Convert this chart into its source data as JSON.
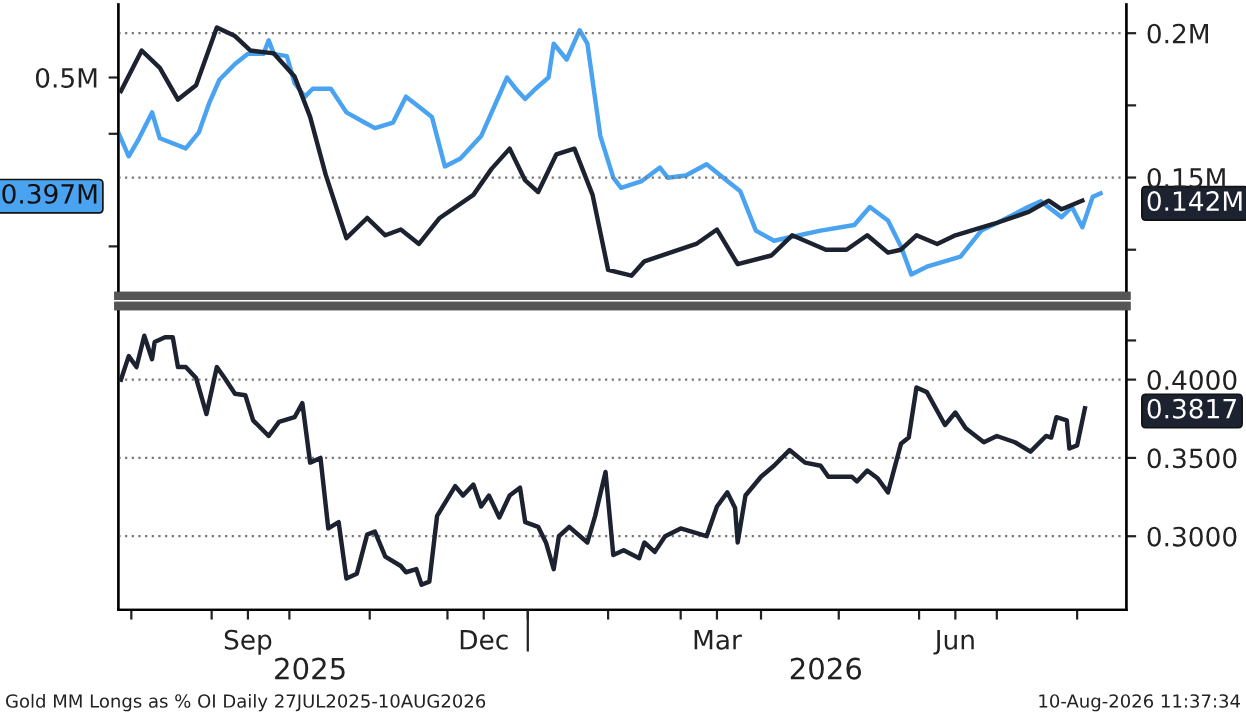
{
  "chart_data": [
    {
      "type": "line",
      "xlim": [
        "2025-07-27",
        "2026-08-20"
      ],
      "ylim": [
        0.306,
        0.565
      ],
      "y2lim": [
        0.109,
        0.21
      ],
      "yticks": [
        {
          "value": 0.35,
          "label": null
        },
        {
          "value": 0.397,
          "label": "0.397M"
        },
        {
          "value": 0.45,
          "label": null
        },
        {
          "value": 0.5,
          "label": "0.5M"
        }
      ],
      "y2ticks": [
        {
          "value": 0.125,
          "label": null
        },
        {
          "value": 0.142,
          "label": "0.142M"
        },
        {
          "value": 0.15,
          "label": "0.15M"
        },
        {
          "value": 0.175,
          "label": null
        },
        {
          "value": 0.2,
          "label": "0.2M"
        }
      ],
      "grid": "y2",
      "tick_labels": "y",
      "series": [
        {
          "color": "#4aa3f0",
          "axis": "y",
          "x": [
            "2025-07-27",
            "2025-07-31",
            "2025-08-04",
            "2025-08-09",
            "2025-08-12",
            "2025-08-22",
            "2025-08-27",
            "2025-08-31",
            "2025-09-04",
            "2025-09-10",
            "2025-09-15",
            "2025-09-21",
            "2025-09-23",
            "2025-09-25",
            "2025-09-30",
            "2025-10-03",
            "2025-10-07",
            "2025-10-10",
            "2025-10-17",
            "2025-10-23",
            "2025-10-30",
            "2025-11-03",
            "2025-11-10",
            "2025-11-15",
            "2025-11-20",
            "2025-11-25",
            "2025-11-30",
            "2025-12-06",
            "2025-12-14",
            "2025-12-24",
            "2025-12-27",
            "2025-12-31",
            "2026-01-04",
            "2026-01-09",
            "2026-01-11",
            "2026-01-16",
            "2026-01-21",
            "2026-01-24",
            "2026-01-29",
            "2026-02-03",
            "2026-02-06",
            "2026-02-14",
            "2026-02-21",
            "2026-02-24",
            "2026-03-03",
            "2026-03-11",
            "2026-03-19",
            "2026-03-24",
            "2026-03-30",
            "2026-04-06",
            "2026-04-14",
            "2026-04-24",
            "2026-05-07",
            "2026-05-13",
            "2026-05-20",
            "2026-05-25",
            "2026-05-29",
            "2026-06-04",
            "2026-06-17",
            "2026-06-25",
            "2026-07-03",
            "2026-07-13",
            "2026-07-18",
            "2026-07-26",
            "2026-07-30",
            "2026-08-03",
            "2026-08-07",
            "2026-08-10"
          ],
          "values": [
            0.451,
            0.43,
            0.446,
            0.469,
            0.446,
            0.437,
            0.451,
            0.477,
            0.498,
            0.512,
            0.521,
            0.521,
            0.533,
            0.521,
            0.519,
            0.495,
            0.483,
            0.49,
            0.49,
            0.469,
            0.46,
            0.455,
            0.46,
            0.483,
            0.474,
            0.465,
            0.421,
            0.428,
            0.448,
            0.5,
            0.491,
            0.481,
            0.49,
            0.5,
            0.53,
            0.516,
            0.542,
            0.53,
            0.448,
            0.411,
            0.402,
            0.408,
            0.42,
            0.411,
            0.413,
            0.423,
            0.408,
            0.399,
            0.364,
            0.355,
            0.359,
            0.364,
            0.369,
            0.385,
            0.373,
            0.35,
            0.325,
            0.332,
            0.341,
            0.364,
            0.373,
            0.385,
            0.39,
            0.376,
            0.385,
            0.367,
            0.394,
            0.397
          ]
        },
        {
          "color": "#1c2230",
          "axis": "y2",
          "x": [
            "2025-07-28",
            "2025-08-05",
            "2025-08-12",
            "2025-08-19",
            "2025-08-26",
            "2025-09-03",
            "2025-09-10",
            "2025-09-16",
            "2025-09-25",
            "2025-10-03",
            "2025-10-09",
            "2025-10-15",
            "2025-10-23",
            "2025-10-31",
            "2025-11-07",
            "2025-11-13",
            "2025-11-20",
            "2025-11-28",
            "2025-12-11",
            "2025-12-18",
            "2025-12-25",
            "2025-12-31",
            "2026-01-05",
            "2026-01-12",
            "2026-01-19",
            "2026-01-26",
            "2026-02-01",
            "2026-02-10",
            "2026-02-15",
            "2026-03-07",
            "2026-03-15",
            "2026-03-23",
            "2026-04-05",
            "2026-04-13",
            "2026-04-26",
            "2026-05-04",
            "2026-05-12",
            "2026-05-20",
            "2026-05-25",
            "2026-05-31",
            "2026-06-08",
            "2026-06-15",
            "2026-06-30",
            "2026-07-13",
            "2026-07-21",
            "2026-07-26",
            "2026-08-03"
          ],
          "values": [
            0.18,
            0.194,
            0.188,
            0.177,
            0.182,
            0.202,
            0.199,
            0.194,
            0.193,
            0.185,
            0.171,
            0.151,
            0.129,
            0.136,
            0.13,
            0.132,
            0.127,
            0.136,
            0.144,
            0.153,
            0.16,
            0.149,
            0.145,
            0.158,
            0.16,
            0.144,
            0.118,
            0.116,
            0.121,
            0.127,
            0.132,
            0.12,
            0.123,
            0.13,
            0.125,
            0.125,
            0.13,
            0.124,
            0.125,
            0.13,
            0.127,
            0.13,
            0.134,
            0.138,
            0.142,
            0.139,
            0.142
          ]
        }
      ],
      "line_style": "solid"
    },
    {
      "type": "line",
      "xlim": [
        "2025-07-27",
        "2026-08-20"
      ],
      "y2lim": [
        0.253,
        0.447
      ],
      "y2ticks": [
        {
          "value": 0.3,
          "label": "0.3000"
        },
        {
          "value": 0.35,
          "label": "0.3500"
        },
        {
          "value": 0.3817,
          "label": "0.3817"
        },
        {
          "value": 0.4,
          "label": "0.4000"
        },
        {
          "value": 0.425,
          "label": null
        }
      ],
      "xticks": [
        {
          "value": "2025-08-01",
          "label": null
        },
        {
          "value": "2025-09-01",
          "label": null
        },
        {
          "value": "2025-09-15",
          "label": "Sep"
        },
        {
          "value": "2025-10-01",
          "label": null
        },
        {
          "value": "2025-11-01",
          "label": null
        },
        {
          "value": "2025-12-01",
          "label": null
        },
        {
          "value": "2025-12-15",
          "label": "Dec"
        },
        {
          "value": "2026-01-01",
          "label": null
        },
        {
          "value": "2026-02-01",
          "label": null
        },
        {
          "value": "2026-03-01",
          "label": null
        },
        {
          "value": "2026-03-15",
          "label": "Mar"
        },
        {
          "value": "2026-04-01",
          "label": null
        },
        {
          "value": "2026-05-01",
          "label": null
        },
        {
          "value": "2026-06-01",
          "label": null
        },
        {
          "value": "2026-06-15",
          "label": "Jun"
        },
        {
          "value": "2026-07-01",
          "label": null
        },
        {
          "value": "2026-08-01",
          "label": null
        }
      ],
      "x2lim": [
        "2025-07-27",
        "2026-08-20"
      ],
      "x2ticks": [
        {
          "value": "2025-10-09",
          "label": "2025"
        },
        {
          "value": "2026-01-01",
          "label": null
        },
        {
          "value": "2026-04-26",
          "label": "2026"
        }
      ],
      "grid": "y2",
      "series": [
        {
          "color": "#1c2230",
          "axis": "y2",
          "x": [
            "2025-07-28",
            "2025-07-31",
            "2025-08-03",
            "2025-08-06",
            "2025-08-09",
            "2025-08-10",
            "2025-08-14",
            "2025-08-17",
            "2025-08-19",
            "2025-08-22",
            "2025-08-26",
            "2025-08-30",
            "2025-09-03",
            "2025-09-06",
            "2025-09-10",
            "2025-09-14",
            "2025-09-17",
            "2025-09-23",
            "2025-09-27",
            "2025-10-03",
            "2025-10-06",
            "2025-10-09",
            "2025-10-13",
            "2025-10-16",
            "2025-10-20",
            "2025-10-23",
            "2025-10-27",
            "2025-10-31",
            "2025-11-03",
            "2025-11-07",
            "2025-11-13",
            "2025-11-15",
            "2025-11-19",
            "2025-11-21",
            "2025-11-24",
            "2025-11-27",
            "2025-12-04",
            "2025-12-07",
            "2025-12-11",
            "2025-12-14",
            "2025-12-17",
            "2025-12-21",
            "2025-12-25",
            "2025-12-29",
            "2025-12-31",
            "2026-01-05",
            "2026-01-08",
            "2026-01-11",
            "2026-01-13",
            "2026-01-17",
            "2026-01-24",
            "2026-01-27",
            "2026-01-31",
            "2026-02-03",
            "2026-02-07",
            "2026-02-13",
            "2026-02-15",
            "2026-02-19",
            "2026-02-23",
            "2026-03-01",
            "2026-03-11",
            "2026-03-15",
            "2026-03-19",
            "2026-03-22",
            "2026-03-23",
            "2026-03-26",
            "2026-04-01",
            "2026-04-06",
            "2026-04-12",
            "2026-04-18",
            "2026-04-24",
            "2026-04-27",
            "2026-05-06",
            "2026-05-08",
            "2026-05-12",
            "2026-05-16",
            "2026-05-20",
            "2026-05-25",
            "2026-05-28",
            "2026-05-31",
            "2026-06-04",
            "2026-06-11",
            "2026-06-15",
            "2026-06-19",
            "2026-06-26",
            "2026-07-01",
            "2026-07-08",
            "2026-07-14",
            "2026-07-20",
            "2026-07-22",
            "2026-07-24",
            "2026-07-28",
            "2026-07-29",
            "2026-08-01",
            "2026-08-04"
          ],
          "values": [
            0.4,
            0.415,
            0.408,
            0.428,
            0.413,
            0.424,
            0.427,
            0.427,
            0.408,
            0.408,
            0.401,
            0.378,
            0.408,
            0.401,
            0.391,
            0.39,
            0.374,
            0.364,
            0.373,
            0.376,
            0.385,
            0.347,
            0.35,
            0.305,
            0.309,
            0.273,
            0.276,
            0.301,
            0.303,
            0.287,
            0.281,
            0.277,
            0.279,
            0.269,
            0.271,
            0.313,
            0.332,
            0.326,
            0.333,
            0.319,
            0.326,
            0.312,
            0.326,
            0.331,
            0.309,
            0.306,
            0.296,
            0.279,
            0.3,
            0.306,
            0.296,
            0.313,
            0.341,
            0.288,
            0.291,
            0.286,
            0.296,
            0.29,
            0.3,
            0.305,
            0.3,
            0.319,
            0.328,
            0.318,
            0.296,
            0.326,
            0.338,
            0.345,
            0.355,
            0.347,
            0.345,
            0.338,
            0.338,
            0.335,
            0.342,
            0.337,
            0.328,
            0.359,
            0.363,
            0.395,
            0.392,
            0.371,
            0.379,
            0.369,
            0.36,
            0.364,
            0.36,
            0.354,
            0.364,
            0.363,
            0.376,
            0.374,
            0.356,
            0.358,
            0.3817
          ]
        }
      ],
      "annotations": [
        "Gold MM Longs as % OI Daily 27JUL2025-10AUG2026",
        "10-Aug-2026 11:37:34"
      ]
    }
  ]
}
